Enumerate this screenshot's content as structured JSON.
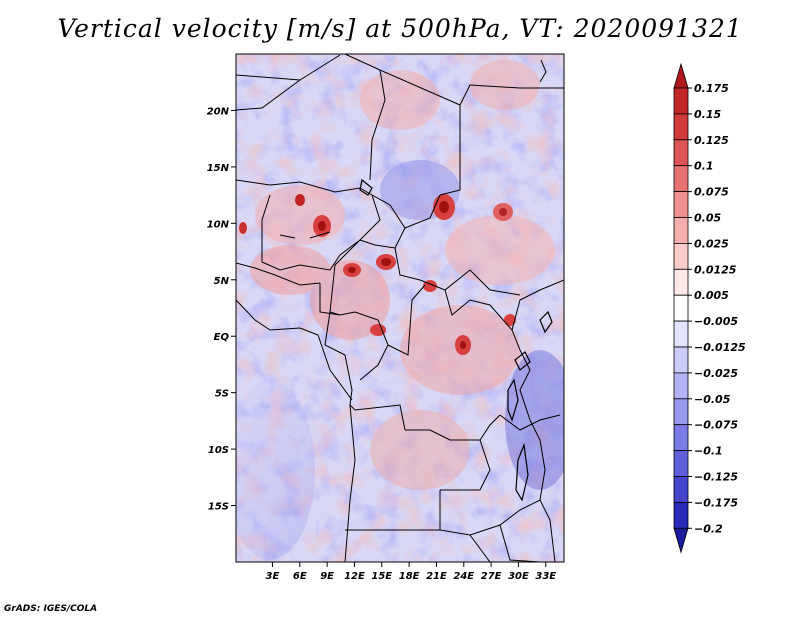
{
  "title": "Vertical velocity [m/s] at 500hPa, VT: 2020091321",
  "credit": "GrADS: IGES/COLA",
  "map": {
    "lon_range": [
      -1,
      35
    ],
    "lat_range": [
      -20,
      25
    ],
    "lon_ticks": [
      "3E",
      "6E",
      "9E",
      "12E",
      "15E",
      "18E",
      "21E",
      "24E",
      "27E",
      "30E",
      "33E"
    ],
    "lon_values": [
      3,
      6,
      9,
      12,
      15,
      18,
      21,
      24,
      27,
      30,
      33
    ],
    "lat_ticks": [
      "20N",
      "15N",
      "10N",
      "5N",
      "EQ",
      "5S",
      "10S",
      "15S"
    ],
    "lat_values": [
      20,
      15,
      10,
      5,
      0,
      -5,
      -10,
      -15
    ],
    "field": "vertical velocity",
    "units": "m/s",
    "level": "500hPa"
  },
  "colorbar": {
    "levels": [
      "0.175",
      "0.15",
      "0.125",
      "0.1",
      "0.075",
      "0.05",
      "0.025",
      "0.0125",
      "0.005",
      "−0.005",
      "−0.0125",
      "−0.025",
      "−0.05",
      "−0.075",
      "−0.1",
      "−0.125",
      "−0.175",
      "−0.2"
    ],
    "colors": [
      "#b0191c",
      "#c32828",
      "#d33a3a",
      "#df5555",
      "#e87272",
      "#f19090",
      "#f6afaf",
      "#fbcccc",
      "#ffe8e8",
      "#ffffff",
      "#e4e4ff",
      "#ccccfa",
      "#b2b2f4",
      "#9898ee",
      "#7c7ce6",
      "#6060db",
      "#4444cc",
      "#2a2ab8",
      "#1a1a9c"
    ]
  },
  "colors": {
    "positive": "#d94040",
    "negative": "#5050d8",
    "border": "#000000"
  }
}
